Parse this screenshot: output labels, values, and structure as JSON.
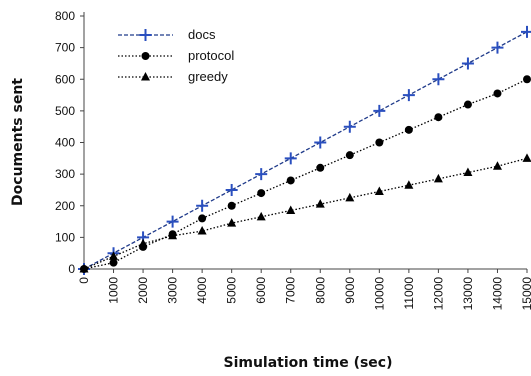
{
  "chart_data": {
    "type": "line",
    "xlabel": "Simulation time (sec)",
    "ylabel": "Documents sent",
    "x": [
      0,
      1000,
      2000,
      3000,
      4000,
      5000,
      6000,
      7000,
      8000,
      9000,
      10000,
      11000,
      12000,
      13000,
      14000,
      15000
    ],
    "xticks": [
      "0",
      "1000",
      "2000",
      "3000",
      "4000",
      "5000",
      "6000",
      "7000",
      "8000",
      "9000",
      "10000",
      "11000",
      "12000",
      "13000",
      "14000",
      "15000"
    ],
    "xlim": [
      0,
      15000
    ],
    "ylim": [
      0,
      800
    ],
    "yticks": [
      0,
      100,
      200,
      300,
      400,
      500,
      600,
      700,
      800
    ],
    "grid": false,
    "legend_position": "top-left",
    "series": [
      {
        "name": "docs",
        "marker": "plus",
        "dash": "dashed",
        "color": "#1f3a8a",
        "values": [
          0,
          50,
          100,
          150,
          200,
          250,
          300,
          350,
          400,
          450,
          500,
          550,
          600,
          650,
          700,
          750
        ]
      },
      {
        "name": "protocol",
        "marker": "circle",
        "dash": "dotted",
        "color": "#000000",
        "values": [
          0,
          20,
          70,
          110,
          160,
          200,
          240,
          280,
          320,
          360,
          400,
          440,
          480,
          520,
          555,
          600
        ]
      },
      {
        "name": "greedy",
        "marker": "triangle",
        "dash": "dotted",
        "color": "#000000",
        "values": [
          0,
          40,
          80,
          105,
          120,
          145,
          165,
          185,
          205,
          225,
          245,
          265,
          285,
          305,
          325,
          350
        ]
      }
    ]
  }
}
